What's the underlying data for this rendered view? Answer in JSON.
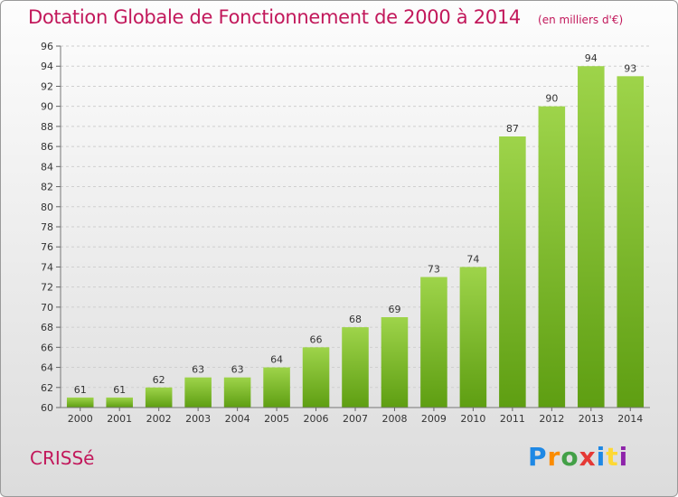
{
  "chart_data": {
    "type": "bar",
    "title": "Dotation Globale de Fonctionnement de 2000 à 2014",
    "unit_label": "(en milliers d'€)",
    "categories": [
      "2000",
      "2001",
      "2002",
      "2003",
      "2004",
      "2005",
      "2006",
      "2007",
      "2008",
      "2009",
      "2010",
      "2011",
      "2012",
      "2013",
      "2014"
    ],
    "values": [
      61,
      61,
      62,
      63,
      63,
      64,
      66,
      68,
      69,
      73,
      74,
      87,
      90,
      94,
      93
    ],
    "ylim": [
      60,
      96
    ],
    "yticks": [
      60,
      62,
      64,
      66,
      68,
      70,
      72,
      74,
      76,
      78,
      80,
      82,
      84,
      86,
      88,
      90,
      92,
      94,
      96
    ],
    "grid": true,
    "colors": {
      "bar_top": "#9ed44a",
      "bar_bottom": "#5e9e12",
      "title": "#c2185b"
    }
  },
  "commune": "CRISSé",
  "logo": {
    "text": "Proxiti",
    "letters": [
      "P",
      "r",
      "o",
      "x",
      "i",
      "t",
      "i"
    ]
  }
}
